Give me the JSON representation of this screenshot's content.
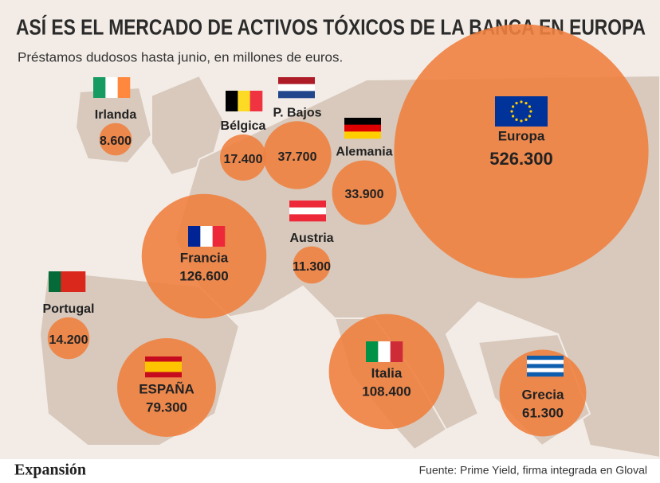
{
  "chart_data": {
    "type": "bubble",
    "title": "ASÍ ES EL MERCADO DE ACTIVOS TÓXICOS DE LA BANCA EN EUROPA",
    "subtitle": "Préstamos dudosos hasta junio, en millones de euros.",
    "categories": [
      "Irlanda",
      "Bélgica",
      "P. Bajos",
      "Alemania",
      "Europa",
      "Francia",
      "Austria",
      "Portugal",
      "ESPAÑA",
      "Italia",
      "Grecia"
    ],
    "values": [
      8600,
      17400,
      37700,
      33900,
      526300,
      126600,
      11300,
      14200,
      79300,
      108400,
      61300
    ],
    "value_labels": [
      "8.600",
      "17.400",
      "37.700",
      "33.900",
      "526.300",
      "126.600",
      "11.300",
      "14.200",
      "79.300",
      "108.400",
      "61.300"
    ],
    "color": "#ef8140",
    "source": "Fuente: Prime Yield, firma integrada en Gloval",
    "brand": "Expansión"
  }
}
